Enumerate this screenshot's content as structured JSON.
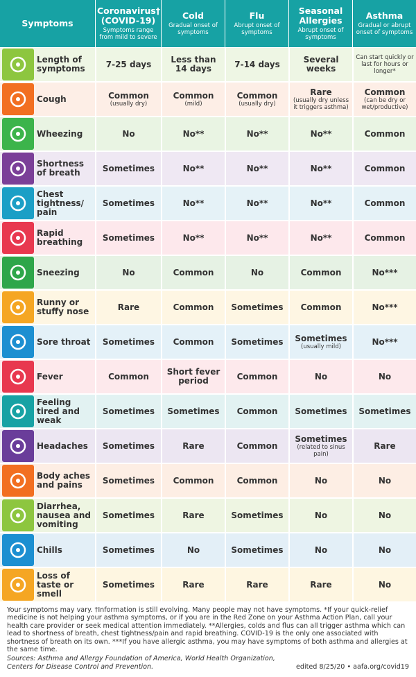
{
  "header": {
    "symptoms": "Symptoms",
    "columns": [
      {
        "title": "Coronavirus† (COVID-19)",
        "subtitle": "Symptoms range from mild to severe"
      },
      {
        "title": "Cold",
        "subtitle": "Gradual onset of symptoms"
      },
      {
        "title": "Flu",
        "subtitle": "Abrupt onset of symptoms"
      },
      {
        "title": "Seasonal Allergies",
        "subtitle": "Abrupt onset of symptoms"
      },
      {
        "title": "Asthma",
        "subtitle": "Gradual or abrupt onset of symptoms"
      }
    ]
  },
  "rows": [
    {
      "symptom": "Length of symptoms",
      "color": "#8dc63f",
      "bg": "#eef6e4",
      "cells": [
        "7-25 days",
        "Less than 14 days",
        "7-14 days",
        "Several weeks",
        {
          "note": "Can start quickly or last for hours or longer*"
        }
      ]
    },
    {
      "symptom": "Cough",
      "color": "#f26f21",
      "bg": "#fdeee6",
      "cells": [
        {
          "text": "Common",
          "note": "(usually dry)"
        },
        {
          "text": "Common",
          "note": "(mild)"
        },
        {
          "text": "Common",
          "note": "(usually dry)"
        },
        {
          "text": "Rare",
          "note": "(usually dry unless it triggers asthma)"
        },
        {
          "text": "Common",
          "note": "(can be dry or wet/productive)"
        }
      ]
    },
    {
      "symptom": "Wheezing",
      "color": "#3cb44b",
      "bg": "#e9f4e3",
      "cells": [
        "No",
        "No**",
        "No**",
        "No**",
        "Common"
      ]
    },
    {
      "symptom": "Shortness of breath",
      "color": "#7b3f98",
      "bg": "#efe8f3",
      "cells": [
        "Sometimes",
        "No**",
        "No**",
        "No**",
        "Common"
      ]
    },
    {
      "symptom": "Chest tightness/ pain",
      "color": "#1b9fc6",
      "bg": "#e5f2f7",
      "cells": [
        "Sometimes",
        "No**",
        "No**",
        "No**",
        "Common"
      ]
    },
    {
      "symptom": "Rapid breathing",
      "color": "#e8384f",
      "bg": "#fde8ec",
      "cells": [
        "Sometimes",
        "No**",
        "No**",
        "No**",
        "Common"
      ]
    },
    {
      "symptom": "Sneezing",
      "color": "#2ea64a",
      "bg": "#e6f2e4",
      "cells": [
        "No",
        "Common",
        "No",
        "Common",
        "No***"
      ]
    },
    {
      "symptom": "Runny or stuffy nose",
      "color": "#f5a623",
      "bg": "#fef6e3",
      "cells": [
        "Rare",
        "Common",
        "Sometimes",
        "Common",
        "No***"
      ]
    },
    {
      "symptom": "Sore throat",
      "color": "#1c8fd1",
      "bg": "#e4f1f8",
      "cells": [
        "Sometimes",
        "Common",
        "Sometimes",
        {
          "text": "Sometimes",
          "note": "(usually mild)"
        },
        "No***"
      ]
    },
    {
      "symptom": "Fever",
      "color": "#e8384f",
      "bg": "#fde9ec",
      "cells": [
        "Common",
        "Short fever period",
        "Common",
        "No",
        "No"
      ]
    },
    {
      "symptom": "Feeling tired and weak",
      "color": "#17a2a4",
      "bg": "#e2f2f2",
      "cells": [
        "Sometimes",
        "Sometimes",
        "Common",
        "Sometimes",
        "Sometimes"
      ]
    },
    {
      "symptom": "Headaches",
      "color": "#6a3d9a",
      "bg": "#ece6f2",
      "cells": [
        "Sometimes",
        "Rare",
        "Common",
        {
          "text": "Sometimes",
          "note": "(related to sinus pain)"
        },
        "Rare"
      ]
    },
    {
      "symptom": "Body aches and pains",
      "color": "#f26f21",
      "bg": "#fdeee4",
      "cells": [
        "Sometimes",
        "Common",
        "Common",
        "No",
        "No"
      ]
    },
    {
      "symptom": "Diarrhea, nausea and vomiting",
      "color": "#8dc63f",
      "bg": "#eef5e2",
      "cells": [
        "Sometimes",
        "Rare",
        "Sometimes",
        "No",
        "No"
      ]
    },
    {
      "symptom": "Chills",
      "color": "#1c8fd1",
      "bg": "#e3eff7",
      "cells": [
        "Sometimes",
        "No",
        "Sometimes",
        "No",
        "No"
      ]
    },
    {
      "symptom": "Loss of taste or smell",
      "color": "#f5a623",
      "bg": "#fef6e1",
      "cells": [
        "Sometimes",
        "Rare",
        "Rare",
        "Rare",
        "No"
      ]
    }
  ],
  "footer": {
    "note": "Your symptoms may vary. †Information is still evolving. Many people may not have symptoms. *If your quick-relief medicine is not helping your asthma symptoms, or if you are in the Red Zone on your Asthma Action Plan, call your health care provider or seek medical attention immediately. **Allergies, colds and flus can all trigger asthma which can lead to shortness of breath, chest tightness/pain and rapid breathing. COVID-19 is the only one associated with shortness of breath on its own. ***If you have allergic asthma, you may have symptoms of both asthma and allergies at the same time.",
    "sources": "Sources: Asthma and Allergy Foundation of America, World Health Organization, Centers for Disease Control and Prevention.",
    "edited": "edited 8/25/20 • aafa.org/covid19"
  }
}
